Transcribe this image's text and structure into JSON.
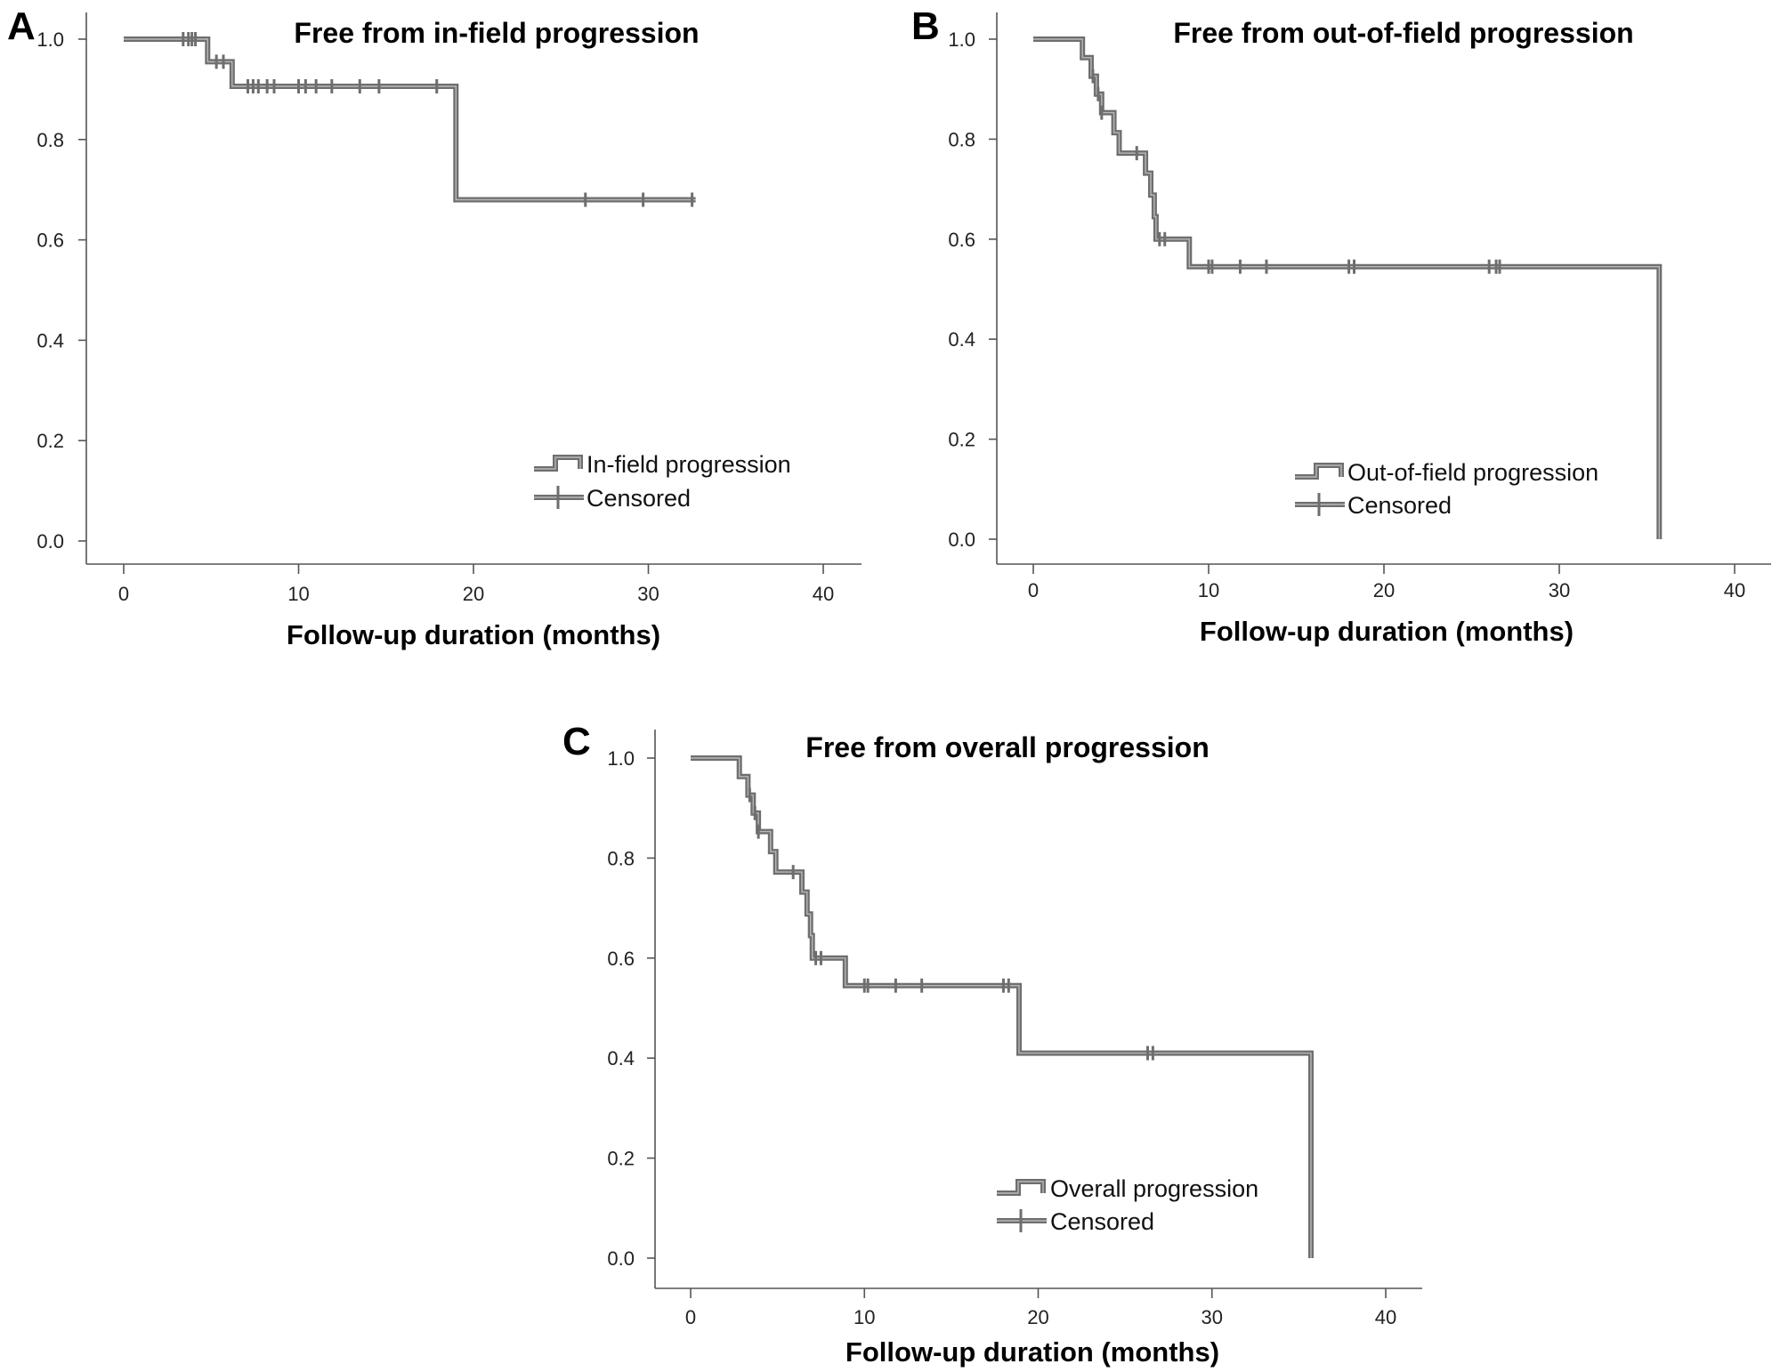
{
  "chart_data": [
    {
      "panel": "A",
      "type": "line",
      "title": "Free from in-field progression",
      "xlabel": "Follow-up duration (months)",
      "ylabel": "",
      "xlim": [
        0,
        40
      ],
      "ylim": [
        0,
        1.0
      ],
      "xticks": [
        0,
        10,
        20,
        30,
        40
      ],
      "yticks": [
        0.0,
        0.2,
        0.4,
        0.6,
        0.8,
        1.0
      ],
      "xtick_labels": [
        "0",
        "10",
        "20",
        "30",
        "40"
      ],
      "ytick_labels": [
        "0.0",
        "0.2",
        "0.4",
        "0.6",
        "0.8",
        "1.0"
      ],
      "grid": false,
      "legend_position": "lower-right",
      "legend": [
        "In-field progression",
        "Censored"
      ],
      "steps": [
        [
          0,
          1.0
        ],
        [
          4.8,
          1.0
        ],
        [
          4.8,
          0.955
        ],
        [
          6.2,
          0.955
        ],
        [
          6.2,
          0.906
        ],
        [
          19.0,
          0.906
        ],
        [
          19.0,
          0.68
        ],
        [
          32.7,
          0.68
        ]
      ],
      "censored": [
        [
          3.4,
          1.0
        ],
        [
          3.7,
          1.0
        ],
        [
          3.9,
          1.0
        ],
        [
          4.1,
          1.0
        ],
        [
          5.3,
          0.955
        ],
        [
          5.7,
          0.955
        ],
        [
          7.1,
          0.906
        ],
        [
          7.4,
          0.906
        ],
        [
          7.7,
          0.906
        ],
        [
          8.2,
          0.906
        ],
        [
          8.6,
          0.906
        ],
        [
          10.0,
          0.906
        ],
        [
          10.4,
          0.906
        ],
        [
          11.0,
          0.906
        ],
        [
          11.9,
          0.906
        ],
        [
          13.5,
          0.906
        ],
        [
          14.6,
          0.906
        ],
        [
          17.9,
          0.906
        ],
        [
          26.4,
          0.68
        ],
        [
          29.7,
          0.68
        ],
        [
          32.5,
          0.68
        ]
      ]
    },
    {
      "panel": "B",
      "type": "line",
      "title": "Free from out-of-field progression",
      "xlabel": "Follow-up duration (months)",
      "ylabel": "",
      "xlim": [
        0,
        40
      ],
      "ylim": [
        0,
        1.0
      ],
      "xticks": [
        0,
        10,
        20,
        30,
        40
      ],
      "yticks": [
        0.0,
        0.2,
        0.4,
        0.6,
        0.8,
        1.0
      ],
      "xtick_labels": [
        "0",
        "10",
        "20",
        "30",
        "40"
      ],
      "ytick_labels": [
        "0.0",
        "0.2",
        "0.4",
        "0.6",
        "0.8",
        "1.0"
      ],
      "grid": false,
      "legend_position": "lower-right",
      "legend": [
        "Out-of-field progression",
        "Censored"
      ],
      "steps": [
        [
          0,
          1.0
        ],
        [
          2.8,
          1.0
        ],
        [
          2.8,
          0.963
        ],
        [
          3.3,
          0.963
        ],
        [
          3.3,
          0.926
        ],
        [
          3.6,
          0.926
        ],
        [
          3.6,
          0.89
        ],
        [
          3.9,
          0.89
        ],
        [
          3.9,
          0.853
        ],
        [
          4.6,
          0.853
        ],
        [
          4.6,
          0.813
        ],
        [
          4.9,
          0.813
        ],
        [
          4.9,
          0.772
        ],
        [
          6.4,
          0.772
        ],
        [
          6.4,
          0.732
        ],
        [
          6.7,
          0.732
        ],
        [
          6.7,
          0.688
        ],
        [
          6.9,
          0.688
        ],
        [
          6.9,
          0.645
        ],
        [
          7.0,
          0.645
        ],
        [
          7.0,
          0.6
        ],
        [
          8.9,
          0.6
        ],
        [
          8.9,
          0.545
        ],
        [
          35.7,
          0.545
        ],
        [
          35.7,
          0.0
        ]
      ],
      "censored": [
        [
          3.4,
          0.926
        ],
        [
          3.7,
          0.89
        ],
        [
          3.9,
          0.853
        ],
        [
          5.9,
          0.772
        ],
        [
          7.2,
          0.6
        ],
        [
          7.5,
          0.6
        ],
        [
          10.0,
          0.545
        ],
        [
          10.2,
          0.545
        ],
        [
          11.8,
          0.545
        ],
        [
          13.3,
          0.545
        ],
        [
          18.0,
          0.545
        ],
        [
          18.3,
          0.545
        ],
        [
          26.0,
          0.545
        ],
        [
          26.4,
          0.545
        ],
        [
          26.6,
          0.545
        ]
      ]
    },
    {
      "panel": "C",
      "type": "line",
      "title": "Free from overall progression",
      "xlabel": "Follow-up duration (months)",
      "ylabel": "",
      "xlim": [
        0,
        40
      ],
      "ylim": [
        0,
        1.0
      ],
      "xticks": [
        0,
        10,
        20,
        30,
        40
      ],
      "yticks": [
        0.0,
        0.2,
        0.4,
        0.6,
        0.8,
        1.0
      ],
      "xtick_labels": [
        "0",
        "10",
        "20",
        "30",
        "40"
      ],
      "ytick_labels": [
        "0.0",
        "0.2",
        "0.4",
        "0.6",
        "0.8",
        "1.0"
      ],
      "grid": false,
      "legend_position": "lower-right",
      "legend": [
        "Overall progression",
        "Censored"
      ],
      "steps": [
        [
          0,
          1.0
        ],
        [
          2.8,
          1.0
        ],
        [
          2.8,
          0.963
        ],
        [
          3.3,
          0.963
        ],
        [
          3.3,
          0.926
        ],
        [
          3.6,
          0.926
        ],
        [
          3.6,
          0.89
        ],
        [
          3.9,
          0.89
        ],
        [
          3.9,
          0.853
        ],
        [
          4.6,
          0.853
        ],
        [
          4.6,
          0.813
        ],
        [
          4.9,
          0.813
        ],
        [
          4.9,
          0.772
        ],
        [
          6.4,
          0.772
        ],
        [
          6.4,
          0.732
        ],
        [
          6.7,
          0.732
        ],
        [
          6.7,
          0.688
        ],
        [
          6.9,
          0.688
        ],
        [
          6.9,
          0.645
        ],
        [
          7.0,
          0.645
        ],
        [
          7.0,
          0.6
        ],
        [
          8.9,
          0.6
        ],
        [
          8.9,
          0.545
        ],
        [
          18.9,
          0.545
        ],
        [
          18.9,
          0.41
        ],
        [
          35.7,
          0.41
        ],
        [
          35.7,
          0.0
        ]
      ],
      "censored": [
        [
          3.4,
          0.926
        ],
        [
          3.7,
          0.89
        ],
        [
          3.9,
          0.853
        ],
        [
          5.9,
          0.772
        ],
        [
          7.2,
          0.6
        ],
        [
          7.5,
          0.6
        ],
        [
          10.0,
          0.545
        ],
        [
          10.2,
          0.545
        ],
        [
          11.8,
          0.545
        ],
        [
          13.3,
          0.545
        ],
        [
          18.0,
          0.545
        ],
        [
          18.3,
          0.545
        ],
        [
          26.3,
          0.41
        ],
        [
          26.6,
          0.41
        ]
      ]
    }
  ]
}
